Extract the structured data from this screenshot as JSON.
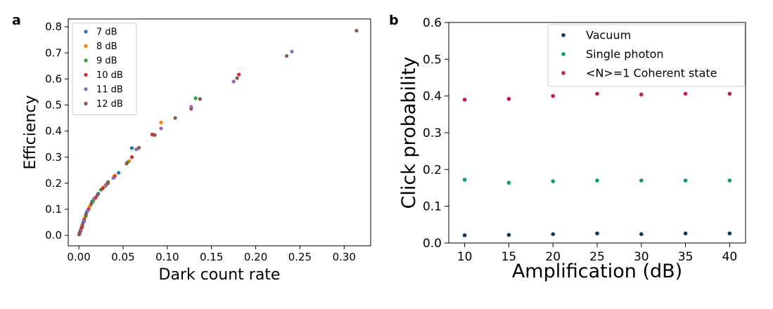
{
  "chart_data": [
    {
      "panel": "a",
      "type": "scatter",
      "title": "",
      "xlabel": "Dark count rate",
      "ylabel": "Efficiency",
      "xlim": [
        -0.012,
        0.33
      ],
      "ylim": [
        -0.04,
        0.83
      ],
      "xticks": [
        0.0,
        0.05,
        0.1,
        0.15,
        0.2,
        0.25,
        0.3
      ],
      "xtick_labels": [
        "0.00",
        "0.05",
        "0.10",
        "0.15",
        "0.20",
        "0.25",
        "0.30"
      ],
      "yticks": [
        0.0,
        0.1,
        0.2,
        0.3,
        0.4,
        0.5,
        0.6,
        0.7,
        0.8
      ],
      "ytick_labels": [
        "0.0",
        "0.1",
        "0.2",
        "0.3",
        "0.4",
        "0.5",
        "0.6",
        "0.7",
        "0.8"
      ],
      "grid": false,
      "legend_position": "top-left",
      "series": [
        {
          "name": "7 dB",
          "color": "#1f77b4",
          "points": [
            [
              0.0005,
              0.005
            ],
            [
              0.002,
              0.02
            ],
            [
              0.005,
              0.05
            ],
            [
              0.009,
              0.09
            ],
            [
              0.015,
              0.13
            ],
            [
              0.022,
              0.16
            ],
            [
              0.03,
              0.19
            ],
            [
              0.045,
              0.24
            ],
            [
              0.06,
              0.335
            ]
          ]
        },
        {
          "name": "8 dB",
          "color": "#ff7f0e",
          "points": [
            [
              0.0008,
              0.008
            ],
            [
              0.003,
              0.03
            ],
            [
              0.007,
              0.07
            ],
            [
              0.012,
              0.11
            ],
            [
              0.018,
              0.14
            ],
            [
              0.028,
              0.185
            ],
            [
              0.041,
              0.23
            ],
            [
              0.057,
              0.285
            ],
            [
              0.093,
              0.433
            ]
          ]
        },
        {
          "name": "9 dB",
          "color": "#2ca02c",
          "points": [
            [
              0.001,
              0.01
            ],
            [
              0.004,
              0.035
            ],
            [
              0.008,
              0.075
            ],
            [
              0.016,
              0.13
            ],
            [
              0.025,
              0.175
            ],
            [
              0.033,
              0.205
            ],
            [
              0.055,
              0.28
            ],
            [
              0.085,
              0.385
            ],
            [
              0.132,
              0.526
            ]
          ]
        },
        {
          "name": "10 dB",
          "color": "#d62728",
          "points": [
            [
              0.0006,
              0.006
            ],
            [
              0.003,
              0.028
            ],
            [
              0.006,
              0.06
            ],
            [
              0.011,
              0.1
            ],
            [
              0.019,
              0.145
            ],
            [
              0.027,
              0.18
            ],
            [
              0.04,
              0.225
            ],
            [
              0.06,
              0.3
            ],
            [
              0.083,
              0.387
            ],
            [
              0.127,
              0.486
            ],
            [
              0.181,
              0.617
            ]
          ]
        },
        {
          "name": "11 dB",
          "color": "#9467bd",
          "points": [
            [
              0.0007,
              0.007
            ],
            [
              0.002,
              0.018
            ],
            [
              0.006,
              0.055
            ],
            [
              0.01,
              0.095
            ],
            [
              0.017,
              0.14
            ],
            [
              0.031,
              0.195
            ],
            [
              0.039,
              0.22
            ],
            [
              0.065,
              0.33
            ],
            [
              0.093,
              0.41
            ],
            [
              0.127,
              0.493
            ],
            [
              0.175,
              0.59
            ],
            [
              0.241,
              0.705
            ]
          ]
        },
        {
          "name": "12 dB",
          "color": "#8c564b",
          "points": [
            [
              0.0003,
              0.003
            ],
            [
              0.0015,
              0.015
            ],
            [
              0.004,
              0.04
            ],
            [
              0.008,
              0.08
            ],
            [
              0.014,
              0.12
            ],
            [
              0.021,
              0.155
            ],
            [
              0.033,
              0.2
            ],
            [
              0.054,
              0.275
            ],
            [
              0.068,
              0.336
            ],
            [
              0.086,
              0.385
            ],
            [
              0.109,
              0.45
            ],
            [
              0.137,
              0.523
            ],
            [
              0.179,
              0.603
            ],
            [
              0.235,
              0.688
            ],
            [
              0.314,
              0.785
            ]
          ]
        }
      ]
    },
    {
      "panel": "b",
      "type": "scatter",
      "title": "",
      "xlabel": "Amplification (dB)",
      "ylabel": "Click probability",
      "xlim": [
        8.2,
        41.8
      ],
      "ylim": [
        0.0,
        0.6
      ],
      "xticks": [
        10,
        15,
        20,
        25,
        30,
        35,
        40
      ],
      "xtick_labels": [
        "10",
        "15",
        "20",
        "25",
        "30",
        "35",
        "40"
      ],
      "yticks": [
        0.0,
        0.1,
        0.2,
        0.3,
        0.4,
        0.5,
        0.6
      ],
      "ytick_labels": [
        "0.0",
        "0.1",
        "0.2",
        "0.3",
        "0.4",
        "0.5",
        "0.6"
      ],
      "grid": false,
      "legend_position": "top-right",
      "x": [
        10,
        15,
        20,
        25,
        30,
        35,
        40
      ],
      "series": [
        {
          "name": "Vacuum",
          "color": "#0c3a5c",
          "values": [
            0.021,
            0.022,
            0.024,
            0.026,
            0.024,
            0.026,
            0.026
          ]
        },
        {
          "name": "Single photon",
          "color": "#0a9a78",
          "values": [
            0.172,
            0.164,
            0.168,
            0.17,
            0.17,
            0.17,
            0.17
          ]
        },
        {
          "name": "<N>=1 Coherent state",
          "color": "#c41d48",
          "values": [
            0.39,
            0.392,
            0.4,
            0.406,
            0.404,
            0.406,
            0.406
          ]
        }
      ]
    }
  ],
  "panel_labels": [
    "a",
    "b"
  ]
}
